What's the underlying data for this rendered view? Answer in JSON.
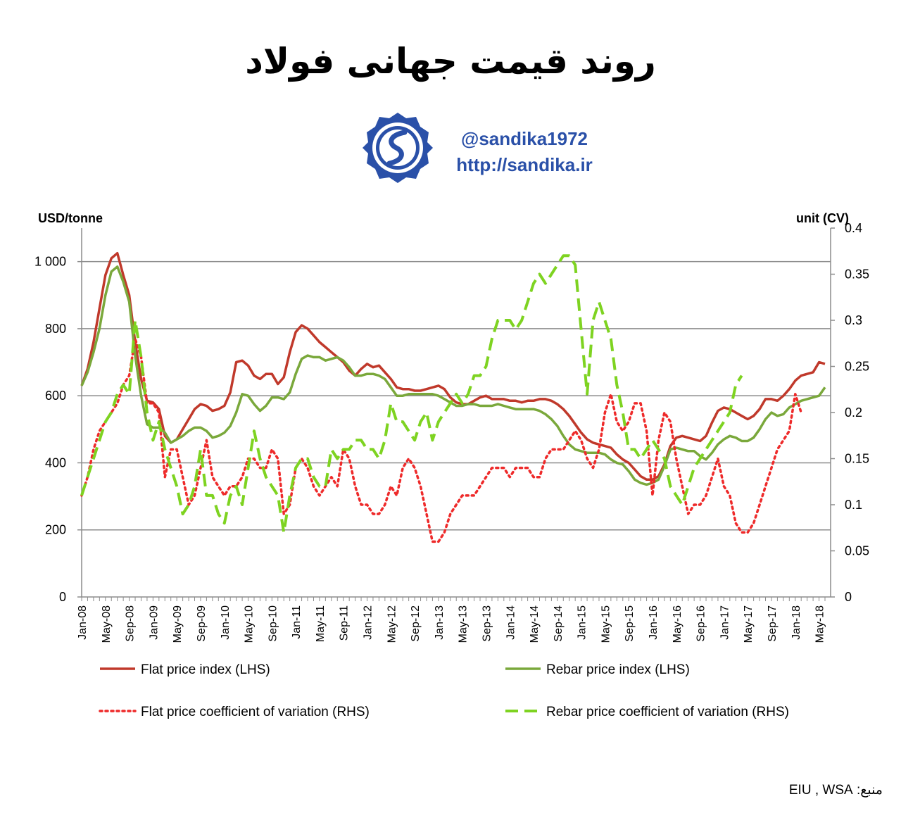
{
  "header": {
    "title": "روند قیمت جهانی فولاد",
    "handle": "@sandika1972",
    "url": "http://sandika.ir",
    "logo_icon": "sandika-logo-icon",
    "brand_color": "#2a50a8"
  },
  "source": "منبع: EIU , WSA",
  "chart_data": {
    "type": "line",
    "ylabel_left": "USD/tonne",
    "ylabel_right": "unit (CV)",
    "ylim_left": [
      0,
      1100
    ],
    "ylim_right": [
      0,
      0.4
    ],
    "yticks_left": [
      "0",
      "200",
      "400",
      "600",
      "800",
      "1 000"
    ],
    "yticks_left_values": [
      0,
      200,
      400,
      600,
      800,
      1000
    ],
    "yticks_right": [
      "0",
      "0.05",
      "0.1",
      "0.15",
      "0.2",
      "0.25",
      "0.3",
      "0.35",
      "0.4"
    ],
    "yticks_right_values": [
      0,
      0.05,
      0.1,
      0.15,
      0.2,
      0.25,
      0.3,
      0.35,
      0.4
    ],
    "x_start": "2008-01",
    "x_tick_labels": [
      "Jan-08",
      "May-08",
      "Sep-08",
      "Jan-09",
      "May-09",
      "Sep-09",
      "Jan-10",
      "May-10",
      "Sep-10",
      "Jan-11",
      "May-11",
      "Sep-11",
      "Jan-12",
      "May-12",
      "Sep-12",
      "Jan-13",
      "May-13",
      "Sep-13",
      "Jan-14",
      "May-14",
      "Sep-14",
      "Jan-15",
      "May-15",
      "Sep-15",
      "Jan-16",
      "May-16",
      "Sep-16",
      "Jan-17",
      "May-17",
      "Sep-17",
      "Jan-18",
      "May-18"
    ],
    "grid": "horizontal",
    "legend_position": "bottom",
    "series": [
      {
        "name": "Flat price index (LHS)",
        "axis": "left",
        "style": "solid",
        "color": "#c0392b",
        "values": [
          630,
          680,
          760,
          860,
          960,
          1010,
          1025,
          960,
          900,
          760,
          650,
          585,
          580,
          560,
          480,
          460,
          470,
          500,
          530,
          560,
          575,
          570,
          555,
          560,
          570,
          610,
          700,
          705,
          690,
          660,
          650,
          665,
          665,
          635,
          655,
          730,
          790,
          810,
          800,
          780,
          760,
          745,
          730,
          715,
          700,
          675,
          660,
          680,
          695,
          685,
          690,
          670,
          650,
          625,
          620,
          620,
          615,
          615,
          620,
          625,
          630,
          620,
          595,
          580,
          575,
          575,
          585,
          595,
          600,
          590,
          590,
          590,
          585,
          585,
          580,
          585,
          585,
          590,
          590,
          585,
          575,
          560,
          540,
          515,
          490,
          470,
          460,
          455,
          450,
          445,
          425,
          410,
          400,
          380,
          360,
          350,
          350,
          360,
          395,
          450,
          475,
          480,
          475,
          470,
          465,
          480,
          520,
          555,
          565,
          560,
          550,
          540,
          530,
          540,
          560,
          590,
          590,
          585,
          600,
          620,
          645,
          660,
          665,
          670,
          700,
          695
        ]
      },
      {
        "name": "Rebar price index (LHS)",
        "axis": "left",
        "style": "solid",
        "color": "#7aa83b",
        "values": [
          630,
          670,
          730,
          800,
          900,
          970,
          985,
          940,
          880,
          720,
          600,
          515,
          505,
          505,
          490,
          460,
          470,
          480,
          495,
          505,
          505,
          495,
          475,
          480,
          490,
          510,
          550,
          605,
          600,
          575,
          555,
          570,
          595,
          595,
          590,
          610,
          665,
          710,
          720,
          715,
          715,
          705,
          710,
          715,
          705,
          685,
          660,
          660,
          665,
          665,
          660,
          650,
          625,
          600,
          600,
          605,
          605,
          605,
          605,
          605,
          600,
          590,
          580,
          570,
          570,
          575,
          575,
          570,
          570,
          570,
          575,
          570,
          565,
          560,
          560,
          560,
          560,
          555,
          545,
          530,
          510,
          480,
          455,
          440,
          435,
          430,
          430,
          430,
          425,
          410,
          400,
          395,
          375,
          350,
          340,
          335,
          340,
          350,
          390,
          440,
          445,
          440,
          435,
          435,
          420,
          410,
          430,
          455,
          470,
          480,
          475,
          465,
          465,
          475,
          500,
          530,
          550,
          540,
          545,
          565,
          575,
          585,
          590,
          595,
          600,
          625
        ]
      },
      {
        "name": "Flat price coefficient of variation (RHS)",
        "axis": "right",
        "style": "dotted",
        "color": "#ee2a2a",
        "values": [
          0.11,
          0.13,
          0.16,
          0.18,
          0.19,
          0.2,
          0.21,
          0.23,
          0.24,
          0.28,
          0.26,
          0.21,
          0.21,
          0.2,
          0.13,
          0.16,
          0.16,
          0.13,
          0.1,
          0.11,
          0.14,
          0.17,
          0.13,
          0.12,
          0.11,
          0.12,
          0.12,
          0.13,
          0.15,
          0.15,
          0.14,
          0.14,
          0.16,
          0.15,
          0.09,
          0.1,
          0.14,
          0.15,
          0.14,
          0.12,
          0.11,
          0.12,
          0.13,
          0.12,
          0.16,
          0.15,
          0.12,
          0.1,
          0.1,
          0.09,
          0.09,
          0.1,
          0.12,
          0.11,
          0.14,
          0.15,
          0.14,
          0.12,
          0.09,
          0.06,
          0.06,
          0.07,
          0.09,
          0.1,
          0.11,
          0.11,
          0.11,
          0.12,
          0.13,
          0.14,
          0.14,
          0.14,
          0.13,
          0.14,
          0.14,
          0.14,
          0.13,
          0.13,
          0.15,
          0.16,
          0.16,
          0.16,
          0.17,
          0.18,
          0.17,
          0.15,
          0.14,
          0.16,
          0.2,
          0.22,
          0.19,
          0.18,
          0.19,
          0.21,
          0.21,
          0.18,
          0.11,
          0.17,
          0.2,
          0.19,
          0.15,
          0.12,
          0.09,
          0.1,
          0.1,
          0.11,
          0.13,
          0.15,
          0.12,
          0.11,
          0.08,
          0.07,
          0.07,
          0.08,
          0.1,
          0.12,
          0.14,
          0.16,
          0.17,
          0.18,
          0.22,
          0.2
        ]
      },
      {
        "name": "Rebar price coefficient of variation (RHS)",
        "axis": "right",
        "style": "dashed",
        "color": "#7ed321",
        "values": [
          0.11,
          0.13,
          0.15,
          0.17,
          0.19,
          0.2,
          0.22,
          0.23,
          0.22,
          0.3,
          0.26,
          0.2,
          0.17,
          0.19,
          0.16,
          0.14,
          0.12,
          0.09,
          0.1,
          0.12,
          0.16,
          0.11,
          0.11,
          0.09,
          0.08,
          0.11,
          0.12,
          0.1,
          0.14,
          0.18,
          0.15,
          0.13,
          0.12,
          0.11,
          0.07,
          0.11,
          0.14,
          0.15,
          0.15,
          0.13,
          0.12,
          0.12,
          0.16,
          0.15,
          0.16,
          0.16,
          0.17,
          0.17,
          0.16,
          0.16,
          0.15,
          0.17,
          0.21,
          0.19,
          0.19,
          0.18,
          0.17,
          0.19,
          0.2,
          0.17,
          0.19,
          0.2,
          0.21,
          0.22,
          0.21,
          0.22,
          0.24,
          0.24,
          0.25,
          0.28,
          0.3,
          0.3,
          0.3,
          0.29,
          0.3,
          0.32,
          0.34,
          0.35,
          0.34,
          0.35,
          0.36,
          0.37,
          0.37,
          0.36,
          0.29,
          0.22,
          0.3,
          0.32,
          0.3,
          0.28,
          0.23,
          0.2,
          0.16,
          0.16,
          0.15,
          0.16,
          0.17,
          0.16,
          0.15,
          0.12,
          0.11,
          0.1,
          0.12,
          0.14,
          0.15,
          0.16,
          0.17,
          0.18,
          0.19,
          0.2,
          0.23,
          0.24
        ]
      }
    ]
  }
}
